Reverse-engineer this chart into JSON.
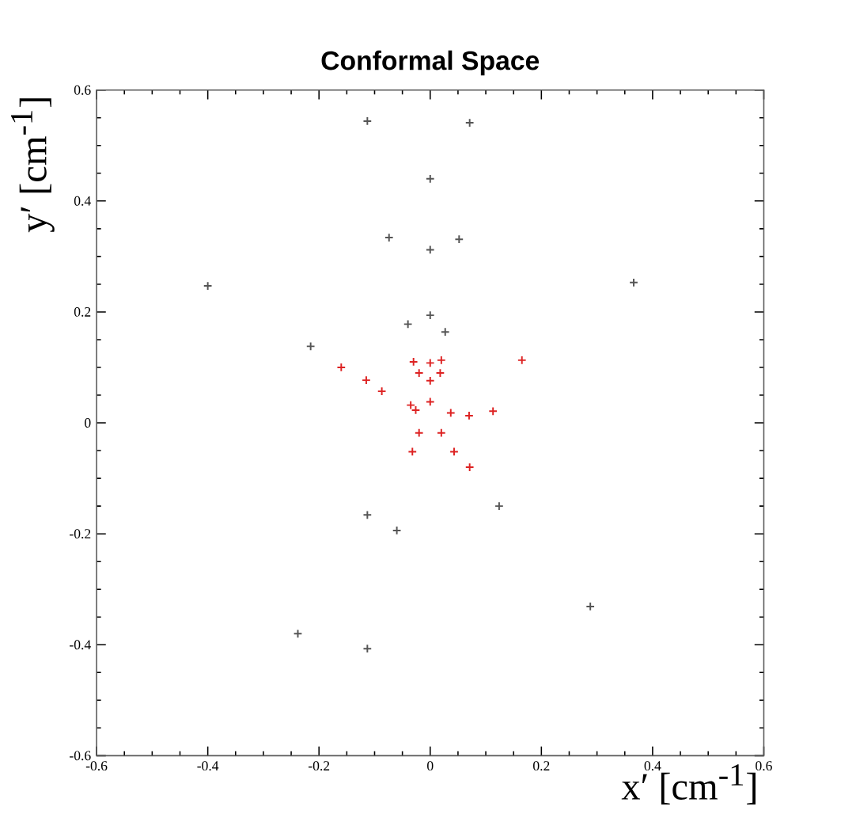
{
  "chart_data": {
    "type": "scatter",
    "title": "Conformal Space",
    "xlabel": "x′ [cm$^{-1}$]",
    "ylabel": "y′ [cm$^{-1}$]",
    "xlim": [
      -0.6,
      0.6
    ],
    "ylim": [
      -0.6,
      0.6
    ],
    "xticks": [
      -0.6,
      -0.4,
      -0.2,
      0,
      0.2,
      0.4,
      0.6
    ],
    "yticks": [
      -0.6,
      -0.4,
      -0.2,
      0,
      0.2,
      0.4,
      0.6
    ],
    "marker": "cross",
    "series": [
      {
        "color": "#555555",
        "x": [
          -0.113,
          0.071,
          0,
          -0.074,
          0.052,
          0,
          -0.4,
          0.366,
          0,
          -0.04,
          0.027,
          -0.215,
          -0.113,
          -0.06,
          0.124,
          0.288,
          -0.238,
          -0.113
        ],
        "values": [
          0.544,
          0.541,
          0.44,
          0.334,
          0.331,
          0.312,
          0.247,
          0.253,
          0.194,
          0.178,
          0.164,
          0.138,
          -0.166,
          -0.194,
          -0.15,
          -0.331,
          -0.38,
          -0.407
        ]
      },
      {
        "color": "#dd2222",
        "x": [
          -0.16,
          -0.115,
          -0.087,
          0.165,
          -0.03,
          0,
          0.02,
          -0.02,
          0.018,
          0,
          0,
          0.113,
          0.07,
          0.037,
          -0.035,
          -0.026,
          -0.02,
          -0.032,
          0.02,
          0.043,
          0.071
        ],
        "values": [
          0.1,
          0.077,
          0.057,
          0.113,
          0.11,
          0.108,
          0.113,
          0.09,
          0.09,
          0.076,
          0.038,
          0.021,
          0.013,
          0.018,
          0.032,
          0.023,
          -0.018,
          -0.052,
          -0.018,
          -0.052,
          -0.08
        ]
      }
    ]
  }
}
